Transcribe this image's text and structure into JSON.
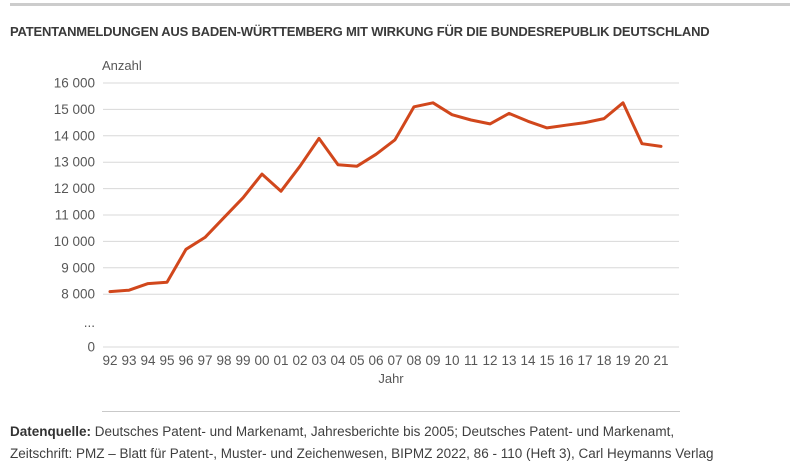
{
  "page": {
    "title": "PATENTANMELDUNGEN AUS BADEN-WÜRTTEMBERG MIT WIRKUNG FÜR DIE BUNDESREPUBLIK DEUTSCHLAND",
    "source": {
      "label": "Datenquelle:",
      "line1_rest": " Deutsches Patent- und Markenamt, Jahresberichte bis 2005; Deutsches Patent- und Markenamt,",
      "line2": "Zeitschrift: PMZ – Blatt für Patent-, Muster- und Zeichenwesen, BIPMZ 2022, 86 - 110 (Heft 3), Carl Heymanns Verlag"
    }
  },
  "chart_data": {
    "type": "line",
    "title": "PATENTANMELDUNGEN AUS BADEN-WÜRTTEMBERG MIT WIRKUNG FÜR DIE BUNDESREPUBLIK DEUTSCHLAND",
    "ylabel": "Anzahl",
    "xlabel": "Jahr",
    "categories": [
      "92",
      "93",
      "94",
      "95",
      "96",
      "97",
      "98",
      "99",
      "00",
      "01",
      "02",
      "03",
      "04",
      "05",
      "06",
      "07",
      "08",
      "09",
      "10",
      "11",
      "12",
      "13",
      "14",
      "15",
      "16",
      "17",
      "18",
      "19",
      "20",
      "21"
    ],
    "values": [
      8100,
      8150,
      8400,
      8450,
      9700,
      10150,
      10900,
      11650,
      12550,
      11900,
      12850,
      13900,
      12900,
      12850,
      13300,
      13850,
      15100,
      15250,
      14800,
      14600,
      14450,
      14850,
      14550,
      14300,
      14400,
      14500,
      14650,
      15250,
      13700,
      13600
    ],
    "y_tick_labels": [
      "16 000",
      "15 000",
      "14 000",
      "13 000",
      "12 000",
      "11 000",
      "10 000",
      "9 000",
      "8 000"
    ],
    "y_tick_values": [
      16000,
      15000,
      14000,
      13000,
      12000,
      11000,
      10000,
      9000,
      8000
    ],
    "axis_break_label": "...",
    "zero_label": "0",
    "ylim": [
      8000,
      16000
    ],
    "grid": true,
    "legend": "none",
    "line_color": "#d1471c",
    "grid_color": "#d8d8d8",
    "tick_text_color": "#575757"
  }
}
